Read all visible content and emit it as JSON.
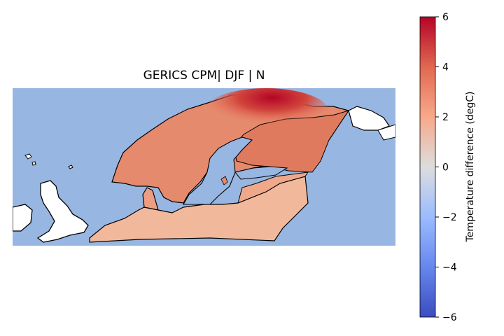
{
  "map": {
    "title": "GERICS CPM| DJF | N",
    "extent_description": "Northern Europe / Scandinavia, British Isles",
    "colors": {
      "ocean": "#97b6e1",
      "land_outside_domain": "#ffffff",
      "coastline": "#000000"
    }
  },
  "colorbar": {
    "label": "Temperature difference (degC)",
    "colormap": "coolwarm",
    "vmin": -6,
    "vmax": 6,
    "ticks": [
      {
        "value": 6,
        "label": "6"
      },
      {
        "value": 4,
        "label": "4"
      },
      {
        "value": 2,
        "label": "2"
      },
      {
        "value": 0,
        "label": "0"
      },
      {
        "value": -2,
        "label": "−2"
      },
      {
        "value": -4,
        "label": "−4"
      },
      {
        "value": -6,
        "label": "−6"
      }
    ]
  }
}
